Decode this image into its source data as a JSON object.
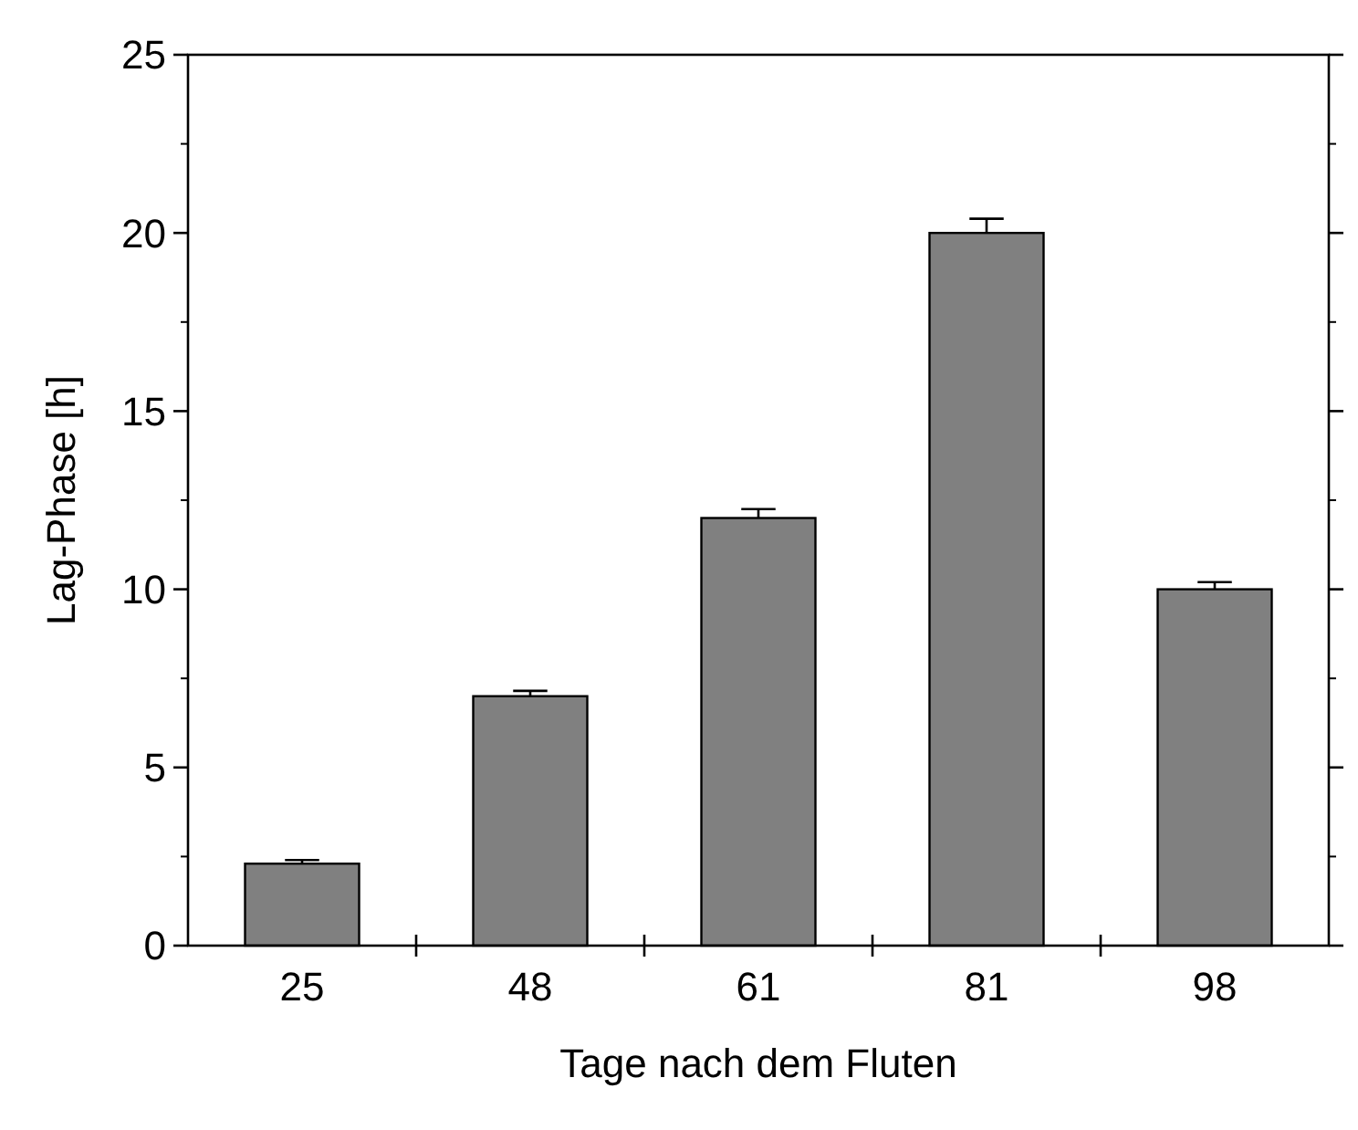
{
  "chart_data": {
    "type": "bar",
    "xlabel": "Tage nach dem Fluten",
    "ylabel": "Lag-Phase [h]",
    "categories": [
      "25",
      "48",
      "61",
      "81",
      "98"
    ],
    "values": [
      2.3,
      7.0,
      12.0,
      20.0,
      10.0
    ],
    "errors": [
      0.1,
      0.15,
      0.25,
      0.4,
      0.2
    ],
    "color": "#808080",
    "ylim": [
      0,
      25
    ],
    "yticks": [
      0,
      5,
      10,
      15,
      20,
      25
    ],
    "grid": false
  }
}
